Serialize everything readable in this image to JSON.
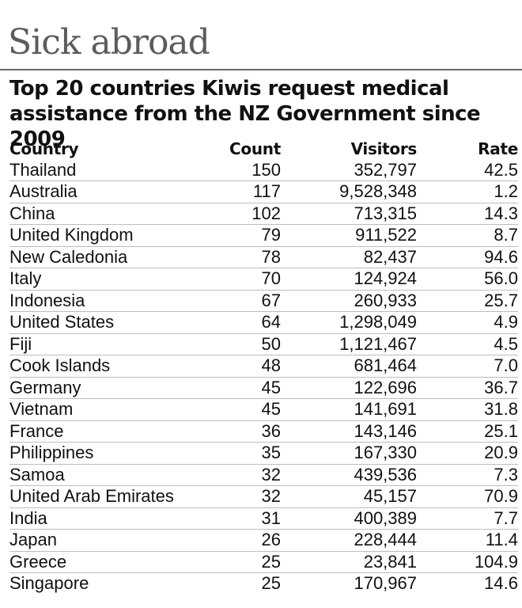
{
  "chart_data": {
    "type": "table",
    "title": "Sick abroad",
    "subtitle": "Top 20 countries Kiwis request medical assistance from the NZ Government since 2009",
    "columns": [
      "Country",
      "Count",
      "Visitors",
      "Rate"
    ],
    "rows": [
      [
        "Thailand",
        "150",
        "352,797",
        "42.5"
      ],
      [
        "Australia",
        "117",
        "9,528,348",
        "1.2"
      ],
      [
        "China",
        "102",
        "713,315",
        "14.3"
      ],
      [
        "United Kingdom",
        "79",
        "911,522",
        "8.7"
      ],
      [
        "New Caledonia",
        "78",
        "82,437",
        "94.6"
      ],
      [
        "Italy",
        "70",
        "124,924",
        "56.0"
      ],
      [
        "Indonesia",
        "67",
        "260,933",
        "25.7"
      ],
      [
        "United States",
        "64",
        "1,298,049",
        "4.9"
      ],
      [
        "Fiji",
        "50",
        "1,121,467",
        "4.5"
      ],
      [
        "Cook Islands",
        "48",
        "681,464",
        "7.0"
      ],
      [
        "Germany",
        "45",
        "122,696",
        "36.7"
      ],
      [
        "Vietnam",
        "45",
        "141,691",
        "31.8"
      ],
      [
        "France",
        "36",
        "143,146",
        "25.1"
      ],
      [
        "Philippines",
        "35",
        "167,330",
        "20.9"
      ],
      [
        "Samoa",
        "32",
        "439,536",
        "7.3"
      ],
      [
        "United Arab Emirates",
        "32",
        "45,157",
        "70.9"
      ],
      [
        "India",
        "31",
        "400,389",
        "7.7"
      ],
      [
        "Japan",
        "26",
        "228,444",
        "11.4"
      ],
      [
        "Greece",
        "25",
        "23,841",
        "104.9"
      ],
      [
        "Singapore",
        "25",
        "170,967",
        "14.6"
      ]
    ]
  }
}
